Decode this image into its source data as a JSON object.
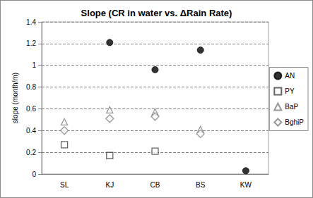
{
  "chart_data": {
    "type": "scatter",
    "title": "Slope (CR in water vs. ΔRain Rate)",
    "y_label": "slope (month/m)",
    "categories": [
      "SL",
      "KJ",
      "CB",
      "BS",
      "KW"
    ],
    "series": [
      {
        "name": "AN",
        "color": "#000000",
        "marker": "circle",
        "values": [
          null,
          1.21,
          0.96,
          1.14,
          0.03
        ]
      },
      {
        "name": "PY",
        "color": "#404040",
        "marker": "square_open",
        "values": [
          0.27,
          0.17,
          0.21,
          null,
          null
        ]
      },
      {
        "name": "BaP",
        "color": "#808080",
        "marker": "triangle_open",
        "values": [
          0.48,
          0.59,
          0.57,
          0.41,
          null
        ]
      },
      {
        "name": "BghiP",
        "color": "#808080",
        "marker": "diamond_open",
        "values": [
          0.4,
          0.51,
          0.53,
          0.37,
          null
        ]
      }
    ],
    "ylim": [
      0,
      1.4
    ],
    "yticks": [
      0,
      0.2,
      0.4,
      0.6,
      0.8,
      1,
      1.2,
      1.4
    ],
    "grid": true,
    "legend": "right"
  }
}
